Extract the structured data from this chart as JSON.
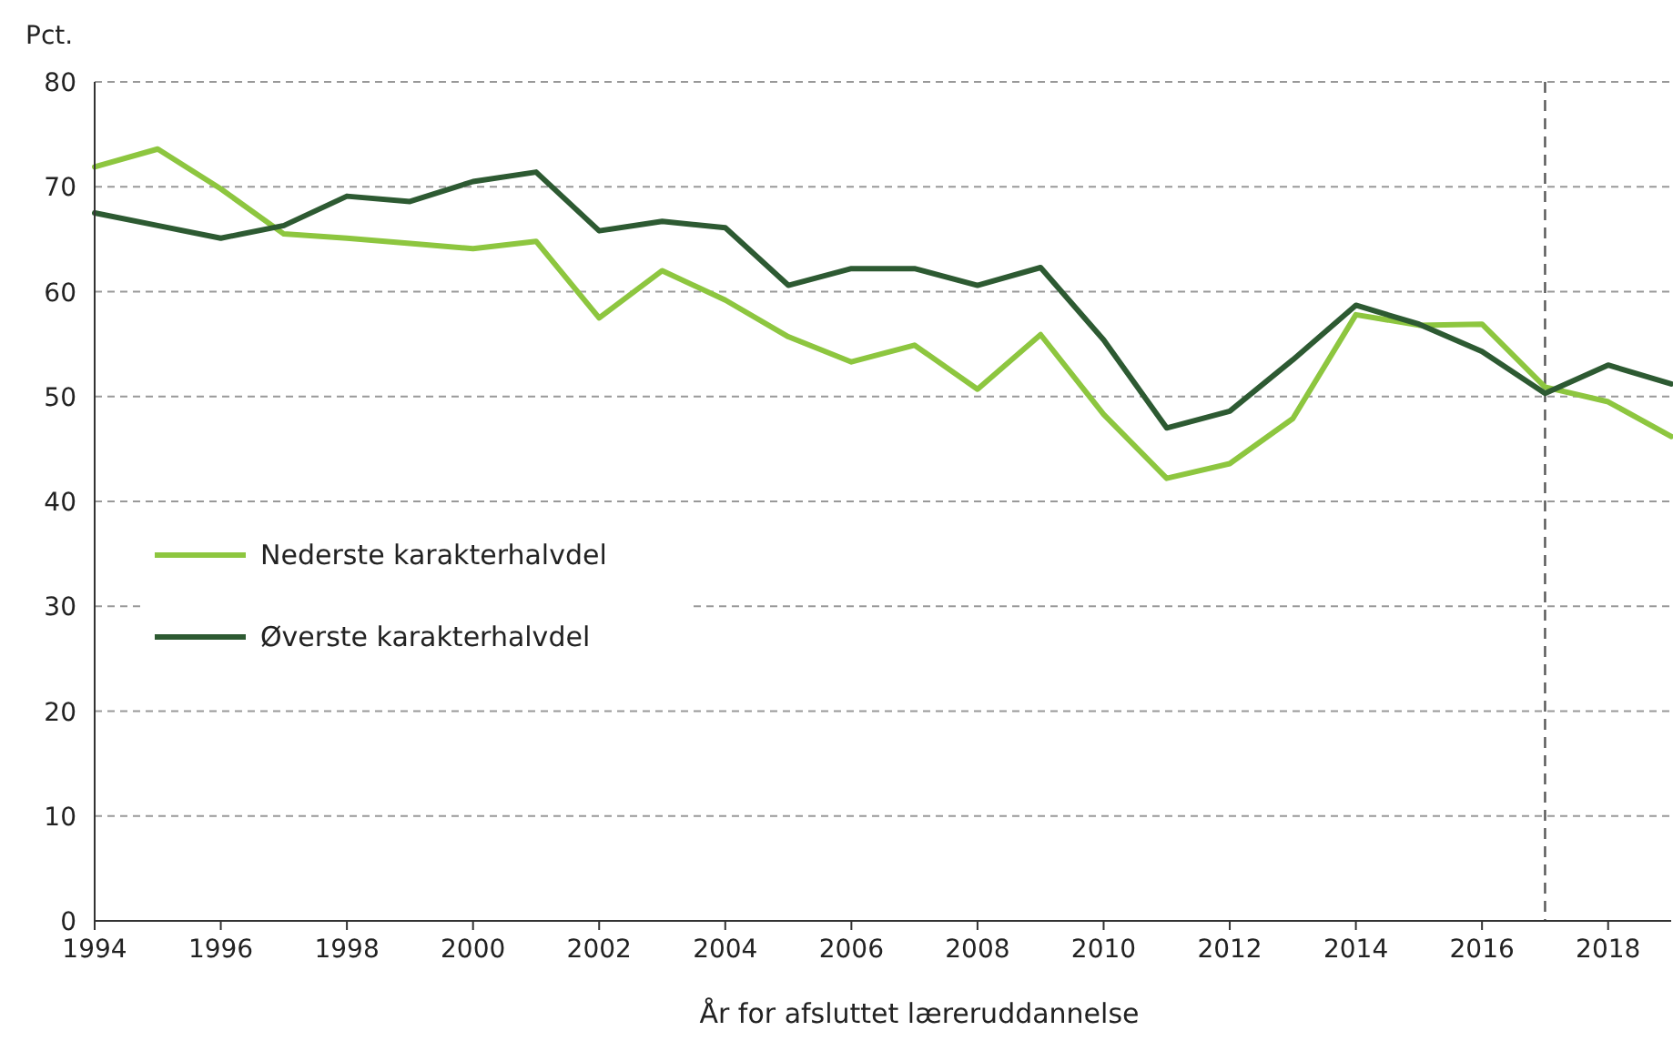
{
  "chart_data": {
    "type": "line",
    "ylabel": "Pct.",
    "xlabel": "År for afsluttet læreruddannelse",
    "x": [
      1994,
      1995,
      1996,
      1997,
      1998,
      1999,
      2000,
      2001,
      2002,
      2003,
      2004,
      2005,
      2006,
      2007,
      2008,
      2009,
      2010,
      2011,
      2012,
      2013,
      2014,
      2015,
      2016,
      2017,
      2018,
      2019
    ],
    "series": [
      {
        "name": "Nederste karakterhalvdel",
        "color": "#8dc63f",
        "values": [
          71.9,
          73.6,
          69.8,
          65.5,
          65.1,
          64.6,
          64.1,
          64.8,
          57.5,
          62,
          59.2,
          55.7,
          53.3,
          54.9,
          50.7,
          55.9,
          48.3,
          42.2,
          43.6,
          47.9,
          57.8,
          56.8,
          56.9,
          50.9,
          49.5,
          46.2
        ]
      },
      {
        "name": "Øverste karakterhalvdel",
        "color": "#2d5a32",
        "values": [
          67.5,
          66.3,
          65.1,
          66.3,
          69.1,
          68.6,
          70.5,
          71.4,
          65.8,
          66.7,
          66.1,
          60.6,
          62.2,
          62.2,
          60.6,
          62.3,
          55.4,
          47,
          48.6,
          53.5,
          58.7,
          56.9,
          54.3,
          50.3,
          53,
          51.2
        ]
      }
    ],
    "xlim": [
      1994,
      2019
    ],
    "xticks": [
      1994,
      1996,
      1998,
      2000,
      2002,
      2004,
      2006,
      2008,
      2010,
      2012,
      2014,
      2016,
      2018
    ],
    "ylim": [
      0,
      80
    ],
    "yticks": [
      0,
      10,
      20,
      30,
      40,
      50,
      60,
      70,
      80
    ],
    "grid": "y",
    "legend": "left",
    "marker": "none",
    "line_style": "solid",
    "ref_lines": [
      {
        "axis": "x",
        "value": 2017,
        "line_style": "dashed",
        "color": "#555555"
      }
    ]
  }
}
